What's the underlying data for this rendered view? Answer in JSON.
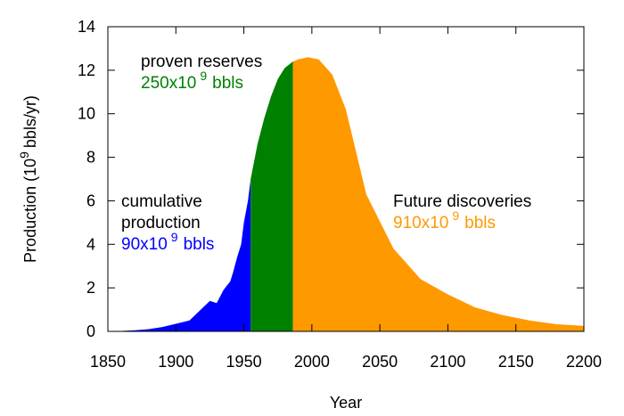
{
  "chart_data": {
    "type": "area",
    "xlabel": "Year",
    "ylabel": {
      "text": "Production (10",
      "exponent": "9",
      "unit": "bbls/yr)"
    },
    "xlim": [
      1850,
      2200
    ],
    "xticks": [
      1850,
      1900,
      1950,
      2000,
      2050,
      2100,
      2150,
      2200
    ],
    "ylim": [
      0,
      14
    ],
    "yticks": [
      0,
      2,
      4,
      6,
      8,
      10,
      12,
      14
    ],
    "series": [
      {
        "color": "#0000ff",
        "x": [
          1850,
          1860,
          1870,
          1880,
          1890,
          1900,
          1910,
          1920,
          1925,
          1930,
          1935,
          1940,
          1942,
          1945,
          1948,
          1950,
          1953,
          1955
        ],
        "values": [
          0,
          0.02,
          0.05,
          0.1,
          0.2,
          0.35,
          0.5,
          1.1,
          1.4,
          1.3,
          1.9,
          2.3,
          2.7,
          3.4,
          4.0,
          5.0,
          6.0,
          7.0
        ]
      },
      {
        "color": "#008000",
        "x": [
          1955,
          1960,
          1965,
          1970,
          1975,
          1980,
          1986
        ],
        "values": [
          7.0,
          8.6,
          9.8,
          10.8,
          11.6,
          12.1,
          12.4
        ]
      },
      {
        "color": "#ff9900",
        "x": [
          1986,
          1990,
          1997,
          2005,
          2015,
          2025,
          2040,
          2060,
          2080,
          2100,
          2120,
          2140,
          2160,
          2180,
          2200
        ],
        "values": [
          12.4,
          12.5,
          12.6,
          12.5,
          11.8,
          10.2,
          6.3,
          3.8,
          2.4,
          1.7,
          1.1,
          0.75,
          0.5,
          0.33,
          0.25
        ]
      }
    ],
    "annotations": [
      {
        "lines": [
          "cumulative",
          "production"
        ],
        "amount": "90x10",
        "exponent": "9",
        "unit": "bbls",
        "color": "#0000ff"
      },
      {
        "lines": [
          "proven reserves"
        ],
        "amount": "250x10",
        "exponent": "9",
        "unit": "bbls",
        "color": "#008000"
      },
      {
        "lines": [
          "Future discoveries"
        ],
        "amount": "910x10",
        "exponent": "9",
        "unit": "bbls",
        "color": "#ff9900"
      }
    ]
  }
}
